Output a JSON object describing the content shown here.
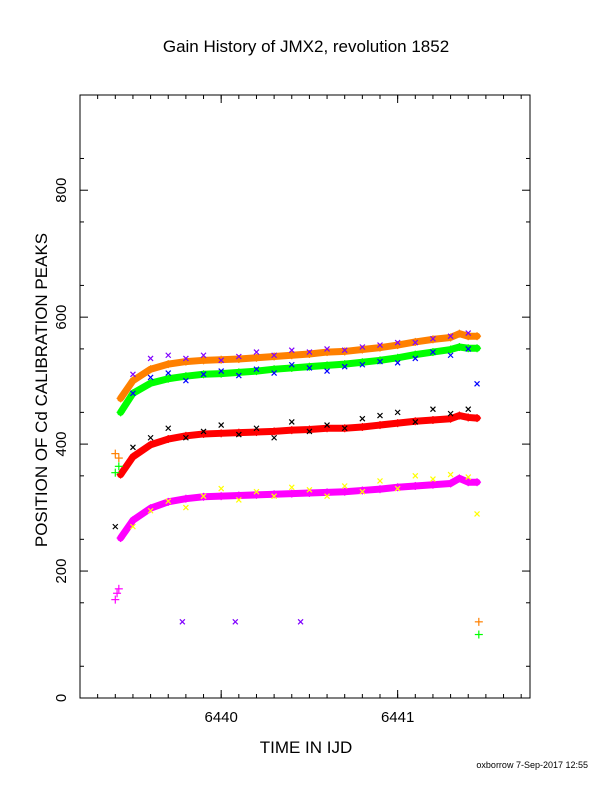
{
  "chart_data": {
    "type": "scatter",
    "title": "Gain History of JMX2, revolution 1852",
    "xlabel": "TIME IN IJD",
    "ylabel": "POSITION OF Cd CALIBRATION PEAKS",
    "xlim": [
      6439.2,
      6441.75
    ],
    "ylim": [
      0,
      950
    ],
    "xticks": [
      6440,
      6441
    ],
    "yticks": [
      0,
      200,
      400,
      600,
      800
    ],
    "grid": false,
    "footer": "oxborrow  7-Sep-2017 12:55",
    "series": [
      {
        "color": "#ff8000",
        "marker": "plus-line",
        "x": [
          6439.43,
          6439.5,
          6439.6,
          6439.7,
          6439.8,
          6439.9,
          6440.0,
          6440.1,
          6440.2,
          6440.3,
          6440.4,
          6440.5,
          6440.6,
          6440.7,
          6440.8,
          6440.9,
          6441.0,
          6441.1,
          6441.2,
          6441.3,
          6441.35,
          6441.4,
          6441.45
        ],
        "y": [
          472,
          500,
          518,
          526,
          530,
          532,
          533,
          534,
          536,
          538,
          540,
          542,
          545,
          546,
          549,
          552,
          556,
          561,
          565,
          568,
          574,
          570,
          570
        ]
      },
      {
        "color": "#00ff00",
        "marker": "plus-line",
        "x": [
          6439.43,
          6439.5,
          6439.6,
          6439.7,
          6439.8,
          6439.9,
          6440.0,
          6440.1,
          6440.2,
          6440.3,
          6440.4,
          6440.5,
          6440.6,
          6440.7,
          6440.8,
          6440.9,
          6441.0,
          6441.1,
          6441.2,
          6441.3,
          6441.35,
          6441.4,
          6441.45
        ],
        "y": [
          450,
          480,
          496,
          503,
          507,
          510,
          511,
          513,
          515,
          518,
          520,
          522,
          524,
          526,
          529,
          532,
          536,
          541,
          545,
          549,
          553,
          551,
          551
        ]
      },
      {
        "color": "#ff0000",
        "marker": "plus-line",
        "x": [
          6439.43,
          6439.5,
          6439.6,
          6439.7,
          6439.8,
          6439.9,
          6440.0,
          6440.1,
          6440.2,
          6440.3,
          6440.4,
          6440.5,
          6440.6,
          6440.7,
          6440.8,
          6440.9,
          6441.0,
          6441.1,
          6441.2,
          6441.3,
          6441.35,
          6441.4,
          6441.45
        ],
        "y": [
          352,
          380,
          399,
          408,
          413,
          416,
          417,
          418,
          419,
          420,
          422,
          423,
          425,
          425,
          427,
          430,
          433,
          436,
          438,
          440,
          445,
          442,
          441
        ]
      },
      {
        "color": "#ff00ff",
        "marker": "plus-line",
        "x": [
          6439.43,
          6439.5,
          6439.6,
          6439.7,
          6439.8,
          6439.9,
          6440.0,
          6440.1,
          6440.2,
          6440.3,
          6440.4,
          6440.5,
          6440.6,
          6440.7,
          6440.8,
          6440.9,
          6441.0,
          6441.1,
          6441.2,
          6441.3,
          6441.35,
          6441.4,
          6441.45
        ],
        "y": [
          252,
          280,
          299,
          309,
          314,
          317,
          318,
          319,
          320,
          321,
          322,
          323,
          324,
          325,
          327,
          329,
          332,
          334,
          336,
          338,
          346,
          340,
          340
        ]
      },
      {
        "color": "#8000ff",
        "marker": "x",
        "x": [
          6439.5,
          6439.6,
          6439.7,
          6439.8,
          6439.9,
          6440.0,
          6440.1,
          6440.2,
          6440.3,
          6440.4,
          6440.5,
          6440.6,
          6440.7,
          6440.8,
          6440.9,
          6441.0,
          6441.1,
          6441.2,
          6441.3,
          6441.4,
          6439.78,
          6440.08,
          6440.45
        ],
        "y": [
          510,
          535,
          540,
          535,
          540,
          532,
          538,
          545,
          540,
          548,
          545,
          550,
          548,
          553,
          556,
          560,
          560,
          566,
          570,
          575,
          120,
          120,
          120
        ]
      },
      {
        "color": "#0000ff",
        "marker": "x",
        "x": [
          6439.5,
          6439.6,
          6439.7,
          6439.8,
          6439.9,
          6440.0,
          6440.1,
          6440.2,
          6440.3,
          6440.4,
          6440.5,
          6440.6,
          6440.7,
          6440.8,
          6440.9,
          6441.0,
          6441.1,
          6441.2,
          6441.3,
          6441.4,
          6441.45
        ],
        "y": [
          480,
          505,
          512,
          500,
          510,
          515,
          508,
          518,
          512,
          525,
          520,
          515,
          522,
          525,
          530,
          528,
          535,
          545,
          540,
          550,
          495
        ]
      },
      {
        "color": "#000000",
        "marker": "x",
        "x": [
          6439.4,
          6439.5,
          6439.6,
          6439.7,
          6439.8,
          6439.9,
          6440.0,
          6440.1,
          6440.2,
          6440.3,
          6440.4,
          6440.5,
          6440.6,
          6440.7,
          6440.8,
          6440.9,
          6441.0,
          6441.1,
          6441.2,
          6441.3,
          6441.4
        ],
        "y": [
          270,
          395,
          410,
          425,
          410,
          420,
          430,
          415,
          425,
          410,
          435,
          420,
          430,
          425,
          440,
          445,
          450,
          435,
          455,
          448,
          455
        ]
      },
      {
        "color": "#ffff00",
        "marker": "x",
        "x": [
          6439.5,
          6439.6,
          6439.7,
          6439.8,
          6439.9,
          6440.0,
          6440.1,
          6440.2,
          6440.3,
          6440.4,
          6440.5,
          6440.6,
          6440.7,
          6440.8,
          6440.9,
          6441.0,
          6441.1,
          6441.2,
          6441.3,
          6441.4,
          6441.45
        ],
        "y": [
          270,
          295,
          310,
          300,
          318,
          330,
          312,
          325,
          318,
          332,
          328,
          318,
          334,
          325,
          342,
          330,
          350,
          345,
          352,
          348,
          290
        ]
      },
      {
        "color": "#ff8000",
        "marker": "plus",
        "x": [
          6439.4,
          6439.42,
          6441.46
        ],
        "y": [
          385,
          378,
          120
        ]
      },
      {
        "color": "#00ff00",
        "marker": "plus",
        "x": [
          6439.4,
          6439.42,
          6441.46
        ],
        "y": [
          355,
          365,
          100
        ]
      },
      {
        "color": "#ff00ff",
        "marker": "plus",
        "x": [
          6439.4,
          6439.41,
          6439.42
        ],
        "y": [
          155,
          165,
          172
        ]
      }
    ]
  }
}
